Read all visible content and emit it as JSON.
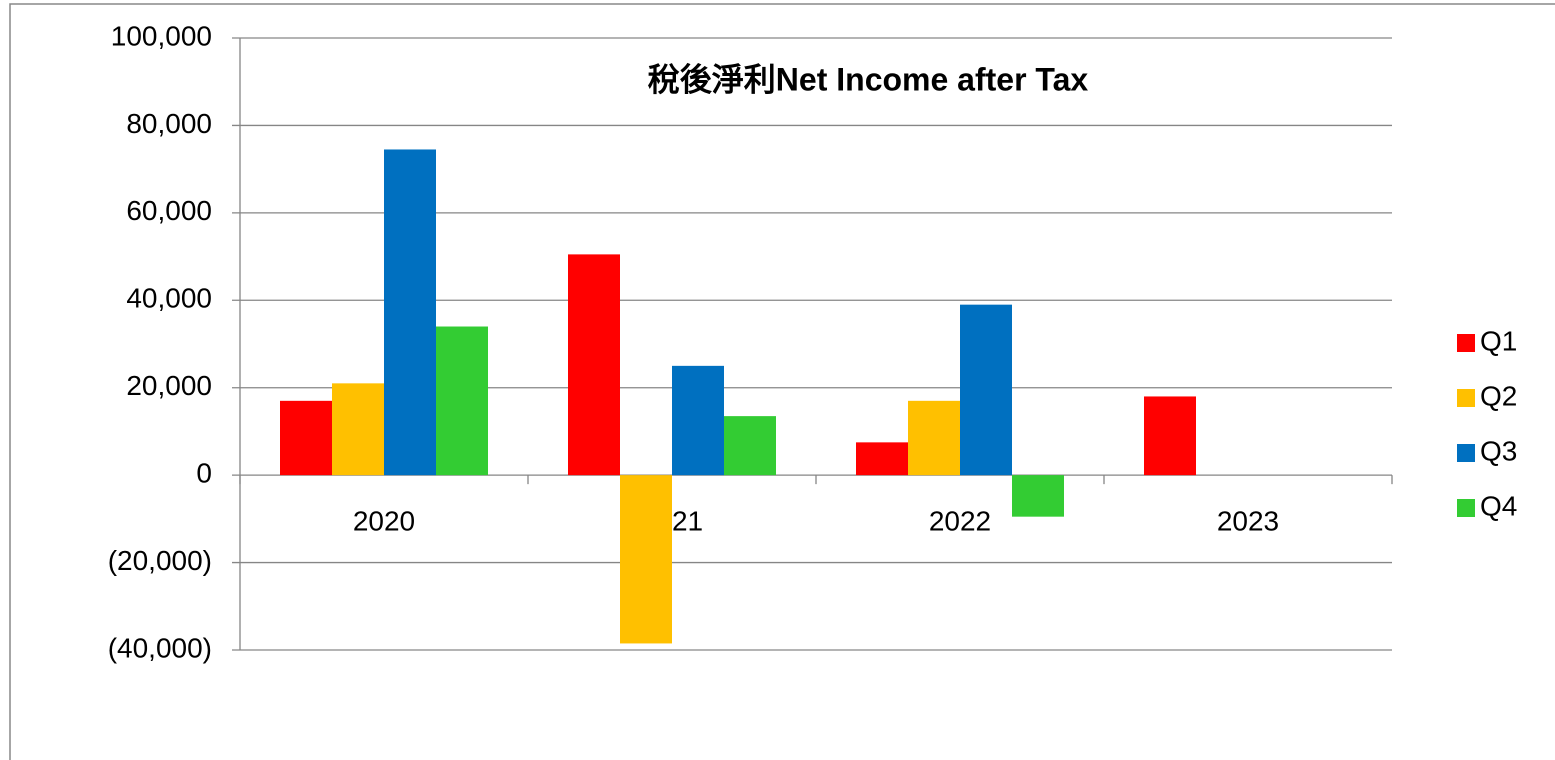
{
  "chart_data": {
    "type": "bar",
    "title": "稅後淨利Net Income after Tax",
    "categories": [
      "2020",
      "2021",
      "2022",
      "2023"
    ],
    "series": [
      {
        "name": "Q1",
        "color": "#ff0000",
        "values": [
          17000,
          50500,
          7500,
          18000
        ]
      },
      {
        "name": "Q2",
        "color": "#ffc000",
        "values": [
          21000,
          -38500,
          17000,
          null
        ]
      },
      {
        "name": "Q3",
        "color": "#0070c0",
        "values": [
          74500,
          25000,
          39000,
          null
        ]
      },
      {
        "name": "Q4",
        "color": "#33cc33",
        "values": [
          34000,
          13500,
          -9500,
          null
        ]
      }
    ],
    "ylim": [
      -40000,
      100000
    ],
    "yticks": [
      {
        "value": -40000,
        "label": "(40,000)"
      },
      {
        "value": -20000,
        "label": "(20,000)"
      },
      0,
      {
        "value": 20000,
        "label": "20,000"
      },
      {
        "value": 40000,
        "label": "40,000"
      },
      {
        "value": 60000,
        "label": "60,000"
      },
      {
        "value": 80000,
        "label": "80,000"
      },
      {
        "value": 100000,
        "label": "100,000"
      }
    ],
    "grid": true,
    "legend": "right"
  }
}
